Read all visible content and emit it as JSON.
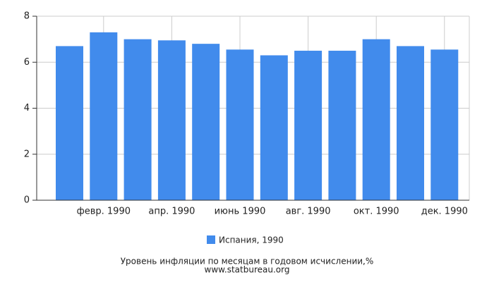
{
  "chart_data": {
    "type": "bar",
    "title": "Уровень инфляции по месяцам в годовом исчислении,%",
    "subtitle": "www.statbureau.org",
    "categories": [
      null,
      "февр. 1990",
      null,
      "апр. 1990",
      null,
      "июнь 1990",
      null,
      "авг. 1990",
      null,
      "окт. 1990",
      null,
      "дек. 1990"
    ],
    "series": [
      {
        "name": "Испания, 1990",
        "color": "#418bec",
        "values": [
          6.7,
          7.3,
          7.0,
          6.95,
          6.8,
          6.55,
          6.3,
          6.5,
          6.5,
          7.0,
          6.7,
          6.55
        ]
      }
    ],
    "ylim": [
      0,
      8
    ],
    "yticks": [
      0,
      2,
      4,
      6,
      8
    ],
    "grid": true,
    "legend": "bottom"
  }
}
